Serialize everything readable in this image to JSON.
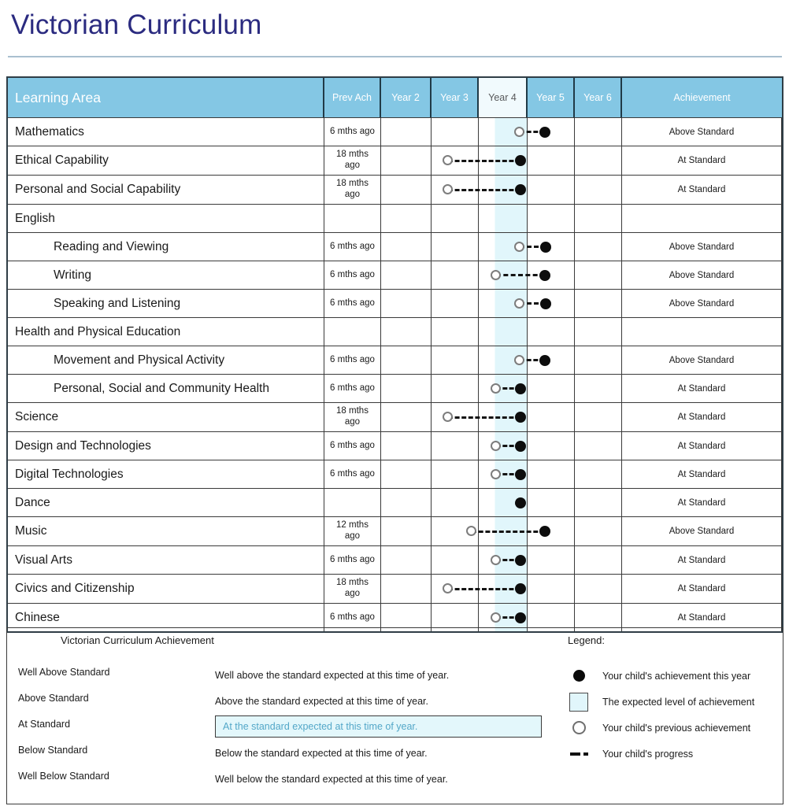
{
  "page": {
    "title": "Victorian Curriculum"
  },
  "colors": {
    "title_navy": "#2b2b80",
    "header_blue": "#84c7e4",
    "header_text": "#ffffff",
    "current_year_header_bg": "#f1fafd",
    "current_year_header_text": "#58595b",
    "expected_level_cyan": "#e1f6fb",
    "at_standard_box_text": "#53a7c8",
    "marker_black": "#0d0d0d",
    "previous_marker_gray": "#7d7d7d"
  },
  "table": {
    "headers": {
      "learning_area": "Learning Area",
      "prev_ach": "Prev Ach",
      "years": [
        "Year 2",
        "Year 3",
        "Year 4",
        "Year 5",
        "Year 6"
      ],
      "achievement": "Achievement",
      "current_year": "Year 4"
    },
    "rows": [
      {
        "name": "Mathematics",
        "prev_ach": "6 mths ago",
        "marker": {
          "prev": 176,
          "curr": 208
        },
        "achievement": "Above Standard"
      },
      {
        "name": "Ethical Capability",
        "prev_ach": "18 mths\nago",
        "tall": true,
        "marker": {
          "prev": 85,
          "curr": 177
        },
        "achievement": "At Standard"
      },
      {
        "name": "Personal and Social Capability",
        "prev_ach": "18 mths\nago",
        "tall": true,
        "marker": {
          "prev": 85,
          "curr": 177
        },
        "achievement": "At Standard"
      },
      {
        "name": "English",
        "group": true
      },
      {
        "name": "Reading and Viewing",
        "indent": true,
        "prev_ach": "6 mths ago",
        "marker": {
          "prev": 176,
          "curr": 209
        },
        "achievement": "Above Standard"
      },
      {
        "name": "Writing",
        "indent": true,
        "prev_ach": "6 mths ago",
        "marker": {
          "prev": 146,
          "curr": 208
        },
        "achievement": "Above Standard"
      },
      {
        "name": "Speaking and Listening",
        "indent": true,
        "prev_ach": "6 mths ago",
        "marker": {
          "prev": 176,
          "curr": 209
        },
        "achievement": "Above Standard"
      },
      {
        "name": "Health and Physical Education",
        "group": true
      },
      {
        "name": "Movement and Physical Activity",
        "indent": true,
        "prev_ach": "6 mths ago",
        "marker": {
          "prev": 176,
          "curr": 208
        },
        "achievement": "Above Standard"
      },
      {
        "name": "Personal, Social and Community Health",
        "indent": true,
        "prev_ach": "6 mths ago",
        "marker": {
          "prev": 146,
          "curr": 177
        },
        "achievement": "At Standard"
      },
      {
        "name": "Science",
        "prev_ach": "18 mths\nago",
        "tall": true,
        "marker": {
          "prev": 85,
          "curr": 177
        },
        "achievement": "At Standard"
      },
      {
        "name": "Design and Technologies",
        "prev_ach": "6 mths ago",
        "marker": {
          "prev": 146,
          "curr": 177
        },
        "achievement": "At Standard"
      },
      {
        "name": "Digital Technologies",
        "prev_ach": "6 mths ago",
        "marker": {
          "prev": 146,
          "curr": 177
        },
        "achievement": "At Standard"
      },
      {
        "name": "Dance",
        "marker": {
          "curr": 177
        },
        "achievement": "At Standard"
      },
      {
        "name": "Music",
        "prev_ach": "12 mths\nago",
        "tall": true,
        "marker": {
          "prev": 115,
          "curr": 208
        },
        "achievement": "Above Standard"
      },
      {
        "name": "Visual Arts",
        "prev_ach": "6 mths ago",
        "marker": {
          "prev": 146,
          "curr": 177
        },
        "achievement": "At Standard"
      },
      {
        "name": "Civics and Citizenship",
        "prev_ach": "18 mths\nago",
        "tall": true,
        "marker": {
          "prev": 85,
          "curr": 177
        },
        "achievement": "At Standard"
      },
      {
        "name": "Chinese",
        "prev_ach": "6 mths ago",
        "marker": {
          "prev": 146,
          "curr": 177
        },
        "achievement": "At Standard"
      }
    ]
  },
  "legend_panel": {
    "title": "Victorian Curriculum Achievement",
    "legend_label": "Legend:",
    "standards": [
      {
        "label": "Well Above Standard",
        "description": "Well above the standard expected at this time of year."
      },
      {
        "label": "Above Standard",
        "description": "Above the standard expected at this time of year."
      },
      {
        "label": "At Standard",
        "description": "At the standard expected at this time of year.",
        "highlighted": true
      },
      {
        "label": "Below Standard",
        "description": "Below the standard expected at this time of year."
      },
      {
        "label": "Well Below Standard",
        "description": "Well below the standard expected at this time of year."
      }
    ],
    "legend_items": [
      {
        "icon": "filled-circle-icon",
        "label": "Your child's achievement this year"
      },
      {
        "icon": "square-icon",
        "label": "The expected level of achievement"
      },
      {
        "icon": "open-circle-icon",
        "label": "Your child's previous achievement"
      },
      {
        "icon": "dashes-icon",
        "label": "Your child's progress"
      }
    ]
  }
}
